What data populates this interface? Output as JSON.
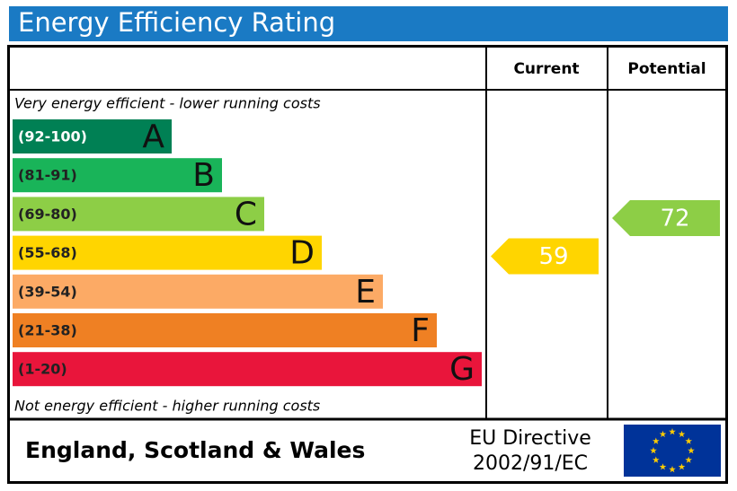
{
  "title": "Energy Efficiency Rating",
  "headers": {
    "current": "Current",
    "potential": "Potential"
  },
  "top_note": "Very energy efficient - lower running costs",
  "bottom_note": "Not energy efficient - higher running costs",
  "bands": [
    {
      "letter": "A",
      "range": {
        "min": 92,
        "max": 100,
        "label": "(92-100)"
      },
      "color": "#008054"
    },
    {
      "letter": "B",
      "range": {
        "min": 81,
        "max": 91,
        "label": "(81-91)"
      },
      "color": "#19b459"
    },
    {
      "letter": "C",
      "range": {
        "min": 69,
        "max": 80,
        "label": "(69-80)"
      },
      "color": "#8dce46"
    },
    {
      "letter": "D",
      "range": {
        "min": 55,
        "max": 68,
        "label": "(55-68)"
      },
      "color": "#ffd500"
    },
    {
      "letter": "E",
      "range": {
        "min": 39,
        "max": 54,
        "label": "(39-54)"
      },
      "color": "#fcaa65"
    },
    {
      "letter": "F",
      "range": {
        "min": 21,
        "max": 38,
        "label": "(21-38)"
      },
      "color": "#ef8023"
    },
    {
      "letter": "G",
      "range": {
        "min": 1,
        "max": 20,
        "label": "(1-20)"
      },
      "color": "#e9153b"
    }
  ],
  "current": {
    "value": 59,
    "color": "#ffd500"
  },
  "potential": {
    "value": 72,
    "color": "#8dce46"
  },
  "footer": {
    "region": "England, Scotland & Wales",
    "directive_line1": "EU Directive",
    "directive_line2": "2002/91/EC"
  }
}
